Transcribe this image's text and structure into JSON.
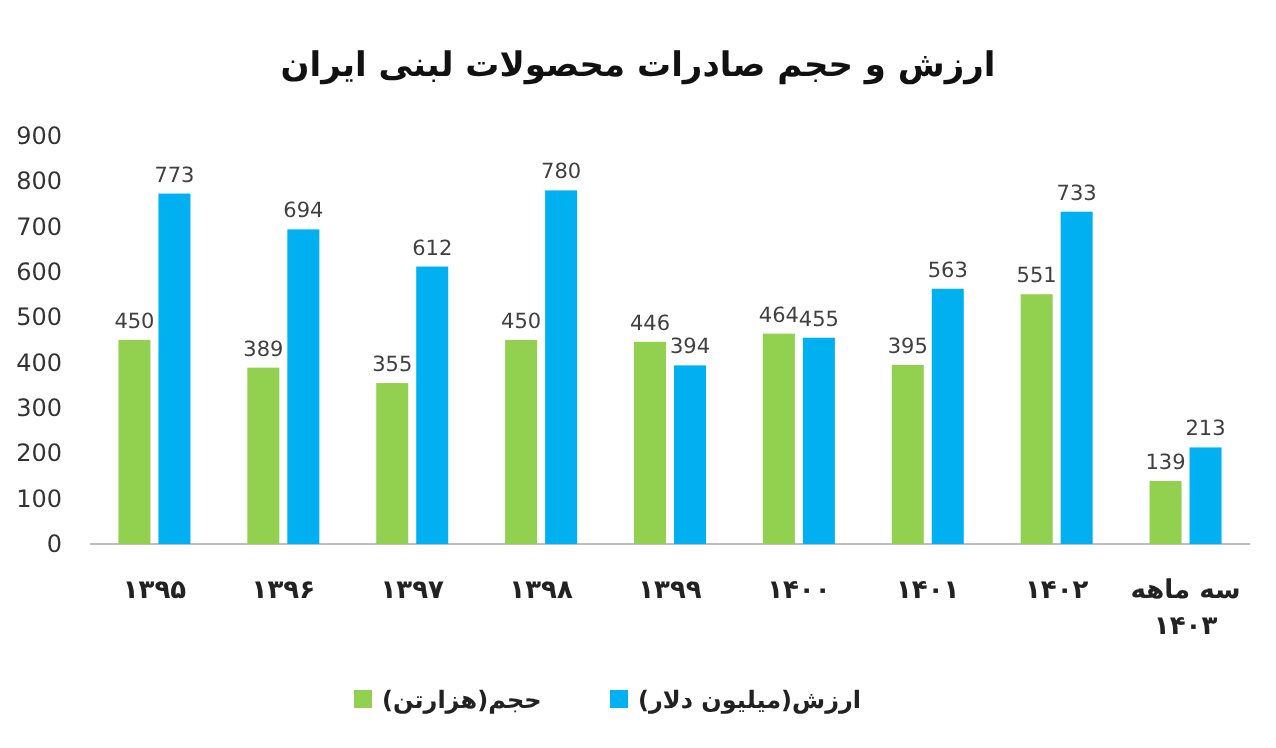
{
  "chart_data": {
    "type": "bar",
    "title": "ارزش و حجم صادرات محصولات لبنی ایران",
    "categories": [
      "۱۳۹۵",
      "۱۳۹۶",
      "۱۳۹۷",
      "۱۳۹۸",
      "۱۳۹۹",
      "۱۴۰۰",
      "۱۴۰۱",
      "۱۴۰۲",
      "سه ماهه ۱۴۰۳"
    ],
    "series": [
      {
        "name": "حجم(هزارتن)",
        "color": "#92d050",
        "values": [
          450,
          389,
          355,
          450,
          446,
          464,
          395,
          551,
          139
        ]
      },
      {
        "name": "ارزش(میلیون دلار)",
        "color": "#00b0f0",
        "values": [
          773,
          694,
          612,
          780,
          394,
          455,
          563,
          733,
          213
        ]
      }
    ],
    "ylim": [
      0,
      900
    ],
    "yticks": [
      0,
      100,
      200,
      300,
      400,
      500,
      600,
      700,
      800,
      900
    ],
    "data_labels": true,
    "legend": "bottom",
    "grid": false
  }
}
